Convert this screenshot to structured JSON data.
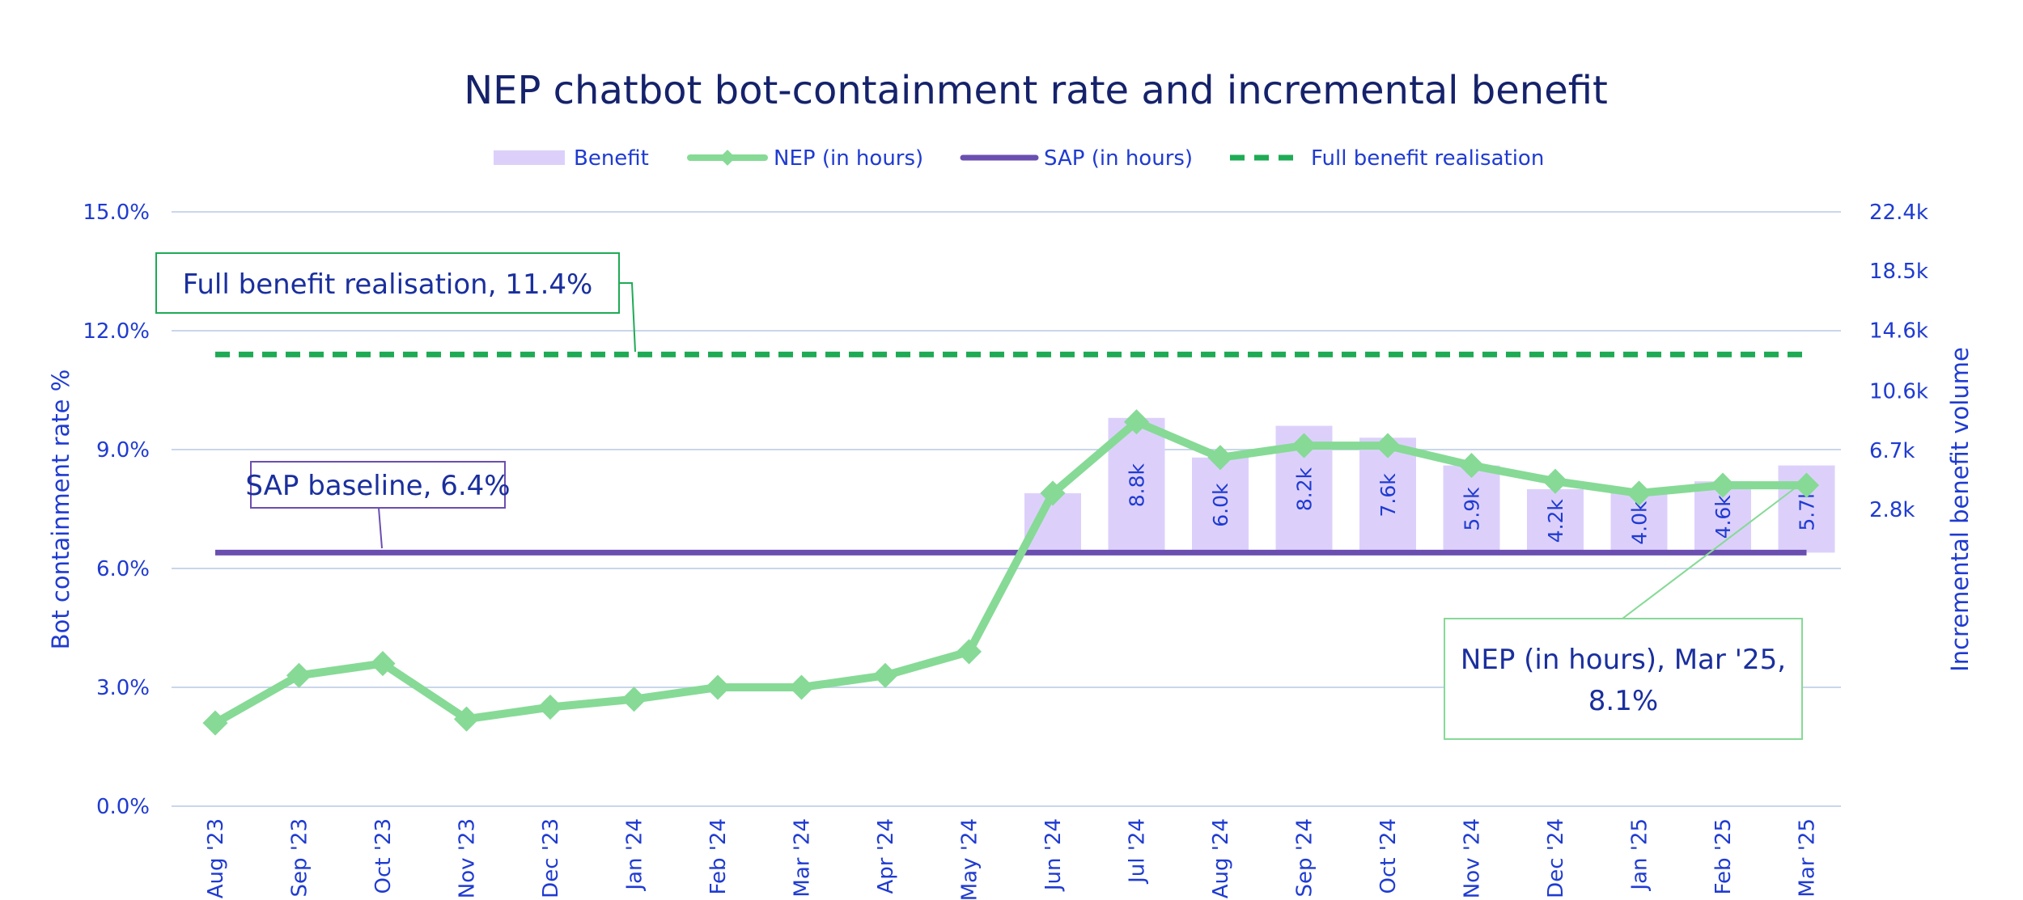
{
  "chart_data": {
    "type": "bar+line",
    "title": "NEP chatbot bot-containment rate and incremental benefit",
    "categories": [
      "Aug '23",
      "Sep '23",
      "Oct '23",
      "Nov '23",
      "Dec '23",
      "Jan '24",
      "Feb '24",
      "Mar '24",
      "Apr '24",
      "May '24",
      "Jun '24",
      "Jul '24",
      "Aug '24",
      "Sep '24",
      "Oct '24",
      "Nov '24",
      "Dec '24",
      "Jan '25",
      "Feb '25",
      "Mar '25"
    ],
    "y_left": {
      "label": "Bot containment rate %",
      "ticks": [
        "0.0%",
        "3.0%",
        "6.0%",
        "9.0%",
        "12.0%",
        "15.0%"
      ],
      "range": [
        0,
        15
      ]
    },
    "y_right": {
      "label": "Incremental benefit volume",
      "ticks": [
        "2.8k",
        "6.7k",
        "10.6k",
        "14.6k",
        "18.5k",
        "22.4k"
      ],
      "values": [
        2.8,
        6.7,
        10.6,
        14.6,
        18.5,
        22.4
      ]
    },
    "series": [
      {
        "name": "Benefit",
        "kind": "bar",
        "color": "#dcd0fb",
        "values": [
          null,
          null,
          null,
          null,
          null,
          null,
          null,
          null,
          null,
          null,
          null,
          8.8,
          6.0,
          8.2,
          7.6,
          5.9,
          4.2,
          4.0,
          4.6,
          5.7
        ],
        "labels": [
          "",
          "",
          "",
          "",
          "",
          "",
          "",
          "",
          "",
          "",
          "",
          "8.8k",
          "6.0k",
          "8.2k",
          "7.6k",
          "5.9k",
          "4.2k",
          "4.0k",
          "4.6k",
          "5.7k"
        ],
        "bar_top_pct": [
          null,
          null,
          null,
          null,
          null,
          null,
          null,
          null,
          null,
          null,
          7.9,
          9.8,
          8.8,
          9.6,
          9.3,
          8.6,
          8.0,
          7.9,
          8.2,
          8.6
        ]
      },
      {
        "name": "NEP (in hours)",
        "kind": "line",
        "color": "#86da96",
        "marker": "diamond",
        "values": [
          2.1,
          3.3,
          3.6,
          2.2,
          2.5,
          2.7,
          3.0,
          3.0,
          3.3,
          3.9,
          7.9,
          9.7,
          8.8,
          9.1,
          9.1,
          8.6,
          8.2,
          7.9,
          8.1,
          8.1
        ]
      },
      {
        "name": "SAP (in hours)",
        "kind": "line",
        "color": "#6b4fb0",
        "values": [
          6.4,
          6.4,
          6.4,
          6.4,
          6.4,
          6.4,
          6.4,
          6.4,
          6.4,
          6.4,
          6.4,
          6.4,
          6.4,
          6.4,
          6.4,
          6.4,
          6.4,
          6.4,
          6.4,
          6.4
        ]
      },
      {
        "name": "Full benefit realisation",
        "kind": "line",
        "style": "dashed",
        "color": "#1fab55",
        "values": [
          11.4,
          11.4,
          11.4,
          11.4,
          11.4,
          11.4,
          11.4,
          11.4,
          11.4,
          11.4,
          11.4,
          11.4,
          11.4,
          11.4,
          11.4,
          11.4,
          11.4,
          11.4,
          11.4,
          11.4
        ]
      }
    ],
    "legend": {
      "placement": "top"
    },
    "grid": true,
    "annotations": {
      "full": "Full benefit realisation, 11.4%",
      "sap": "SAP baseline, 6.4%",
      "nep_line1": "NEP (in hours), Mar '25,",
      "nep_line2": "8.1%"
    }
  }
}
